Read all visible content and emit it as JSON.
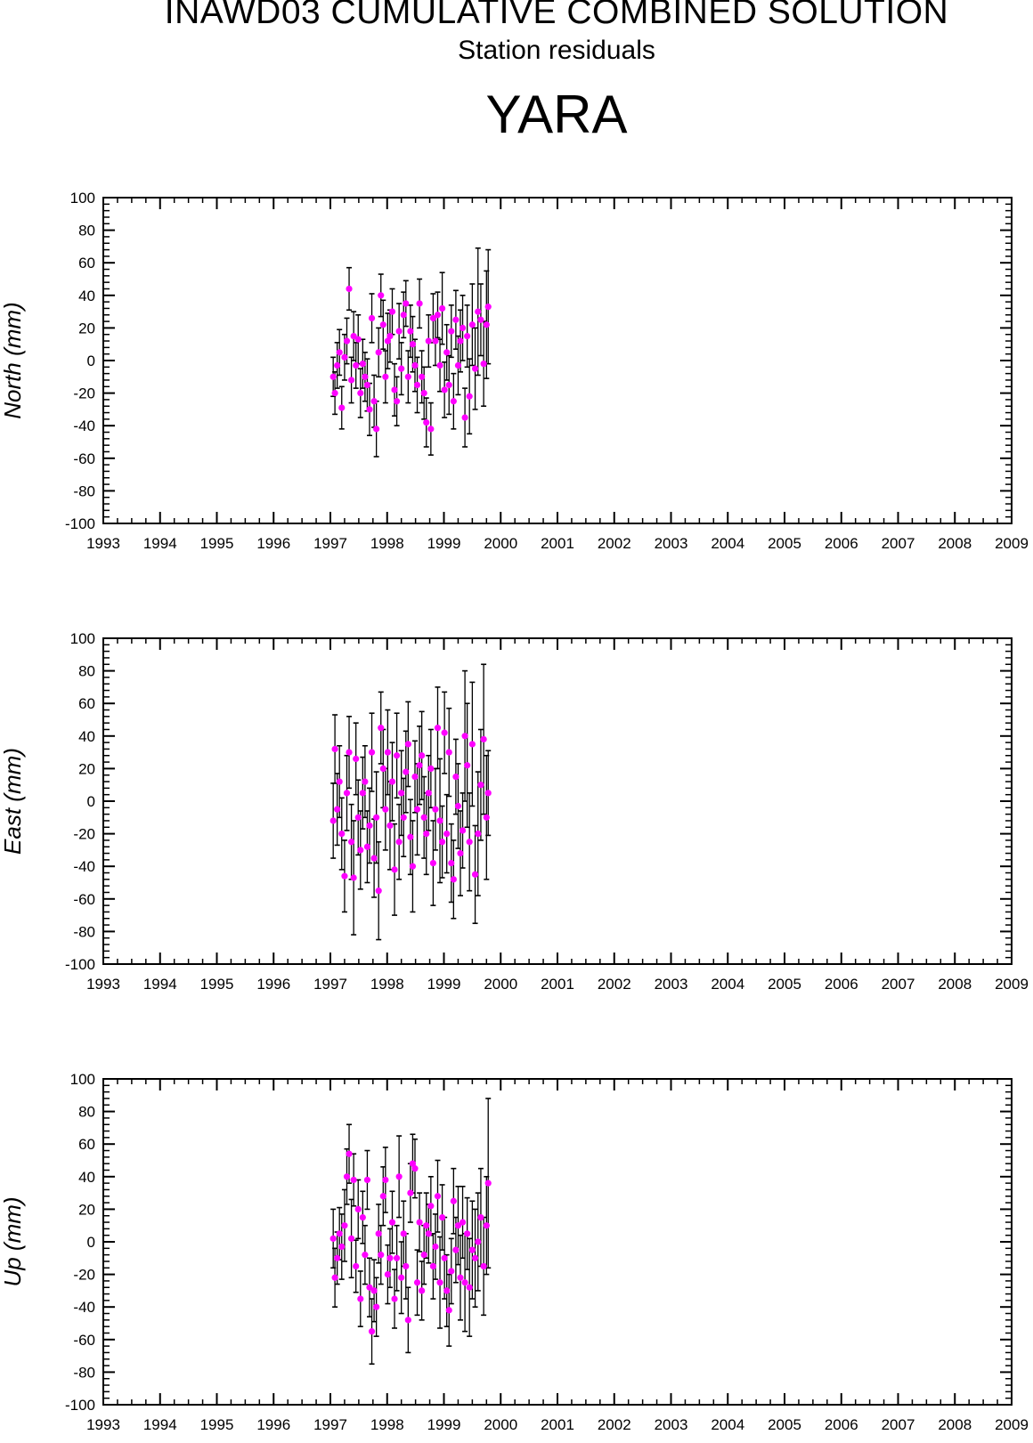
{
  "header": {
    "title": "INAWD03 CUMULATIVE COMBINED SOLUTION",
    "subtitle": "Station residuals",
    "station": "YARA"
  },
  "colors": {
    "point": "#ff00ff",
    "errorbar": "#000000",
    "axis": "#000000"
  },
  "chart_data": [
    {
      "type": "scatter",
      "ylabel": "North (mm)",
      "xlim": [
        1993,
        2009
      ],
      "ylim": [
        -100,
        100
      ],
      "x_ticks": [
        1993,
        1994,
        1995,
        1996,
        1997,
        1998,
        1999,
        2000,
        2001,
        2002,
        2003,
        2004,
        2005,
        2006,
        2007,
        2008,
        2009
      ],
      "y_ticks": [
        -100,
        -80,
        -60,
        -40,
        -20,
        0,
        20,
        40,
        60,
        80,
        100
      ],
      "grid": false,
      "error_bars": true,
      "series": [
        {
          "x": [
            1997.05,
            1997.08,
            1997.12,
            1997.16,
            1997.2,
            1997.25,
            1997.29,
            1997.33,
            1997.37,
            1997.41,
            1997.45,
            1997.49,
            1997.53,
            1997.57,
            1997.61,
            1997.65,
            1997.69,
            1997.73,
            1997.77,
            1997.81,
            1997.85,
            1997.89,
            1997.93,
            1997.97,
            1998.01,
            1998.05,
            1998.09,
            1998.13,
            1998.17,
            1998.21,
            1998.25,
            1998.29,
            1998.33,
            1998.37,
            1998.41,
            1998.45,
            1998.49,
            1998.53,
            1998.57,
            1998.61,
            1998.65,
            1998.69,
            1998.73,
            1998.77,
            1998.81,
            1998.85,
            1998.89,
            1998.93,
            1998.97,
            1999.01,
            1999.05,
            1999.09,
            1999.13,
            1999.17,
            1999.21,
            1999.25,
            1999.29,
            1999.33,
            1999.37,
            1999.41,
            1999.45,
            1999.5,
            1999.55,
            1999.6,
            1999.65,
            1999.7,
            1999.75,
            1999.78
          ],
          "y": [
            -10,
            -20,
            -3,
            5,
            -29,
            2,
            12,
            44,
            -12,
            15,
            -3,
            13,
            -20,
            -2,
            -10,
            -15,
            -30,
            26,
            -25,
            -42,
            5,
            40,
            22,
            -10,
            12,
            15,
            30,
            -18,
            -25,
            18,
            -5,
            28,
            35,
            -10,
            18,
            10,
            -3,
            -15,
            35,
            -10,
            -20,
            -38,
            12,
            -42,
            26,
            12,
            28,
            -3,
            32,
            -18,
            5,
            -15,
            18,
            -25,
            25,
            -3,
            12,
            20,
            -35,
            15,
            -22,
            22,
            -5,
            30,
            25,
            -2,
            22,
            33
          ],
          "err": [
            12,
            13,
            14,
            14,
            13,
            14,
            14,
            13,
            14,
            15,
            14,
            15,
            15,
            15,
            15,
            16,
            16,
            15,
            16,
            17,
            15,
            13,
            15,
            16,
            17,
            16,
            14,
            16,
            15,
            17,
            16,
            14,
            14,
            16,
            16,
            17,
            16,
            17,
            15,
            16,
            16,
            15,
            16,
            16,
            15,
            15,
            14,
            16,
            22,
            17,
            17,
            18,
            16,
            17,
            18,
            18,
            19,
            20,
            18,
            19,
            23,
            25,
            25,
            39,
            22,
            26,
            33,
            35
          ]
        }
      ]
    },
    {
      "type": "scatter",
      "ylabel": "East (mm)",
      "xlim": [
        1993,
        2009
      ],
      "ylim": [
        -100,
        100
      ],
      "x_ticks": [
        1993,
        1994,
        1995,
        1996,
        1997,
        1998,
        1999,
        2000,
        2001,
        2002,
        2003,
        2004,
        2005,
        2006,
        2007,
        2008,
        2009
      ],
      "y_ticks": [
        -100,
        -80,
        -60,
        -40,
        -20,
        0,
        20,
        40,
        60,
        80,
        100
      ],
      "grid": false,
      "error_bars": true,
      "series": [
        {
          "x": [
            1997.05,
            1997.08,
            1997.12,
            1997.16,
            1997.2,
            1997.25,
            1997.29,
            1997.33,
            1997.37,
            1997.41,
            1997.45,
            1997.49,
            1997.53,
            1997.57,
            1997.61,
            1997.65,
            1997.69,
            1997.73,
            1997.77,
            1997.81,
            1997.85,
            1997.89,
            1997.93,
            1997.97,
            1998.01,
            1998.05,
            1998.09,
            1998.13,
            1998.17,
            1998.21,
            1998.25,
            1998.29,
            1998.33,
            1998.37,
            1998.41,
            1998.45,
            1998.49,
            1998.53,
            1998.57,
            1998.61,
            1998.65,
            1998.69,
            1998.73,
            1998.77,
            1998.81,
            1998.85,
            1998.89,
            1998.93,
            1998.97,
            1999.01,
            1999.05,
            1999.09,
            1999.13,
            1999.17,
            1999.21,
            1999.25,
            1999.29,
            1999.33,
            1999.37,
            1999.41,
            1999.45,
            1999.5,
            1999.55,
            1999.6,
            1999.65,
            1999.7,
            1999.75,
            1999.78
          ],
          "y": [
            -12,
            32,
            -5,
            12,
            -20,
            -46,
            5,
            30,
            -25,
            -47,
            26,
            -10,
            -30,
            5,
            12,
            -28,
            -15,
            30,
            -35,
            -10,
            -55,
            45,
            20,
            -5,
            30,
            -15,
            12,
            -42,
            28,
            -25,
            5,
            -10,
            18,
            35,
            -22,
            -40,
            15,
            -5,
            22,
            28,
            -10,
            -20,
            5,
            20,
            -38,
            -5,
            45,
            -12,
            -25,
            42,
            -20,
            30,
            -38,
            -48,
            15,
            -3,
            -32,
            -18,
            40,
            22,
            -25,
            35,
            -45,
            -20,
            10,
            38,
            -10,
            5
          ],
          "err": [
            23,
            21,
            22,
            22,
            22,
            22,
            23,
            22,
            23,
            35,
            22,
            23,
            24,
            22,
            22,
            22,
            23,
            24,
            24,
            28,
            30,
            22,
            24,
            25,
            26,
            27,
            24,
            28,
            26,
            23,
            26,
            24,
            25,
            26,
            23,
            28,
            22,
            28,
            24,
            27,
            25,
            25,
            23,
            24,
            26,
            25,
            25,
            38,
            22,
            25,
            24,
            27,
            24,
            24,
            23,
            26,
            26,
            23,
            40,
            38,
            30,
            38,
            30,
            38,
            34,
            46,
            38,
            26
          ]
        }
      ]
    },
    {
      "type": "scatter",
      "ylabel": "Up (mm)",
      "xlim": [
        1993,
        2009
      ],
      "ylim": [
        -100,
        100
      ],
      "x_ticks": [
        1993,
        1994,
        1995,
        1996,
        1997,
        1998,
        1999,
        2000,
        2001,
        2002,
        2003,
        2004,
        2005,
        2006,
        2007,
        2008,
        2009
      ],
      "y_ticks": [
        -100,
        -80,
        -60,
        -40,
        -20,
        0,
        20,
        40,
        60,
        80,
        100
      ],
      "grid": false,
      "error_bars": true,
      "series": [
        {
          "x": [
            1997.05,
            1997.08,
            1997.12,
            1997.16,
            1997.2,
            1997.25,
            1997.29,
            1997.33,
            1997.37,
            1997.41,
            1997.45,
            1997.49,
            1997.53,
            1997.57,
            1997.61,
            1997.65,
            1997.69,
            1997.73,
            1997.77,
            1997.81,
            1997.85,
            1997.89,
            1997.93,
            1997.97,
            1998.01,
            1998.05,
            1998.09,
            1998.13,
            1998.17,
            1998.21,
            1998.25,
            1998.29,
            1998.33,
            1998.37,
            1998.41,
            1998.45,
            1998.49,
            1998.53,
            1998.57,
            1998.61,
            1998.65,
            1998.69,
            1998.73,
            1998.77,
            1998.81,
            1998.85,
            1998.89,
            1998.93,
            1998.97,
            1999.01,
            1999.05,
            1999.09,
            1999.13,
            1999.17,
            1999.21,
            1999.25,
            1999.29,
            1999.33,
            1999.37,
            1999.41,
            1999.45,
            1999.5,
            1999.55,
            1999.6,
            1999.65,
            1999.7,
            1999.75,
            1999.78
          ],
          "y": [
            2,
            -22,
            -10,
            5,
            -3,
            10,
            40,
            54,
            2,
            38,
            -15,
            20,
            -35,
            15,
            -8,
            38,
            -28,
            -55,
            -30,
            -40,
            5,
            -8,
            28,
            38,
            -20,
            -10,
            12,
            -35,
            -10,
            40,
            -22,
            5,
            -15,
            -48,
            30,
            48,
            45,
            -25,
            12,
            -30,
            -8,
            10,
            5,
            22,
            -15,
            -3,
            28,
            -25,
            15,
            -10,
            -30,
            -42,
            -18,
            25,
            -5,
            10,
            -22,
            12,
            -25,
            5,
            -28,
            -5,
            -10,
            0,
            15,
            -15,
            10,
            36
          ],
          "err": [
            18,
            18,
            16,
            16,
            20,
            22,
            17,
            18,
            24,
            16,
            16,
            18,
            17,
            16,
            18,
            18,
            18,
            20,
            19,
            18,
            18,
            18,
            18,
            20,
            18,
            18,
            19,
            18,
            20,
            25,
            22,
            20,
            20,
            20,
            18,
            18,
            18,
            20,
            18,
            18,
            18,
            20,
            18,
            18,
            20,
            20,
            22,
            28,
            20,
            25,
            22,
            22,
            20,
            20,
            20,
            24,
            26,
            22,
            30,
            22,
            30,
            30,
            30,
            30,
            30,
            30,
            30,
            52
          ]
        }
      ]
    }
  ]
}
